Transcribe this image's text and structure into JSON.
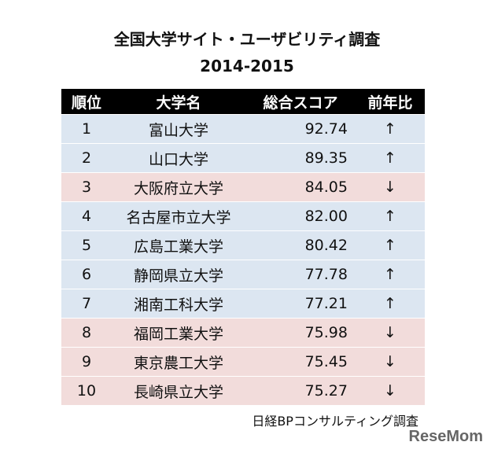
{
  "header": {
    "title": "全国大学サイト・ユーザビリティ調査",
    "subtitle": "2014-2015"
  },
  "table": {
    "columns": [
      "順位",
      "大学名",
      "総合スコア",
      "前年比"
    ],
    "rows": [
      {
        "cells": [
          "1",
          "富山大学",
          "92.74",
          "↑"
        ],
        "color": "#dce6f1"
      },
      {
        "cells": [
          "2",
          "山口大学",
          "89.35",
          "↑"
        ],
        "color": "#dce6f1"
      },
      {
        "cells": [
          "3",
          "大阪府立大学",
          "84.05",
          "↓"
        ],
        "color": "#f2dcdb"
      },
      {
        "cells": [
          "4",
          "名古屋市立大学",
          "82.00",
          "↑"
        ],
        "color": "#dce6f1"
      },
      {
        "cells": [
          "5",
          "広島工業大学",
          "80.42",
          "↑"
        ],
        "color": "#dce6f1"
      },
      {
        "cells": [
          "6",
          "静岡県立大学",
          "77.78",
          "↑"
        ],
        "color": "#dce6f1"
      },
      {
        "cells": [
          "7",
          "湘南工科大学",
          "77.21",
          "↑"
        ],
        "color": "#dce6f1"
      },
      {
        "cells": [
          "8",
          "福岡工業大学",
          "75.98",
          "↓"
        ],
        "color": "#f2dcdb"
      },
      {
        "cells": [
          "9",
          "東京農工大学",
          "75.45",
          "↓"
        ],
        "color": "#f2dcdb"
      },
      {
        "cells": [
          "10",
          "長崎県立大学",
          "75.27",
          "↓"
        ],
        "color": "#f2dcdb"
      }
    ]
  },
  "source": "日経BPコンサルティング調査",
  "logo": "ReseMom"
}
